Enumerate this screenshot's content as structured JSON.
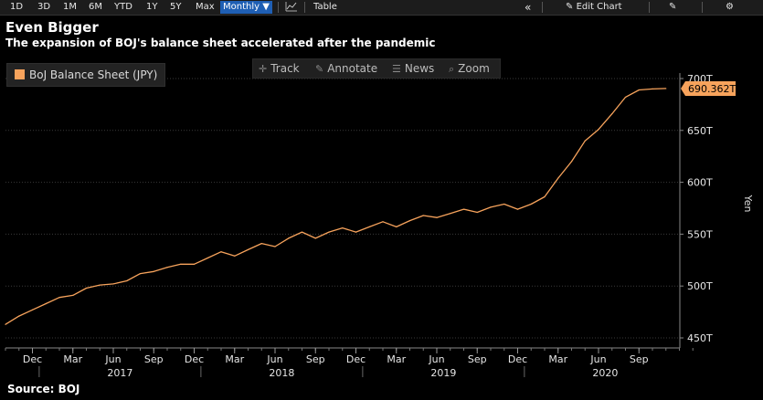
{
  "toolbar": {
    "ranges": [
      "1D",
      "3D",
      "1M",
      "6M",
      "YTD",
      "1Y",
      "5Y",
      "Max"
    ],
    "frequency": "Monthly ▼",
    "chart_type_icon": "line-chart-icon",
    "table_label": "Table",
    "collapse_icon": "double-chevron-left-icon",
    "edit_chart_label": "Edit Chart",
    "edit_icon": "pencil-icon",
    "annotate_icon": "edit-square-icon",
    "settings_icon": "gear-icon"
  },
  "chart_tools": {
    "track": "Track",
    "annotate": "Annotate",
    "news": "News",
    "zoom": "Zoom"
  },
  "colors": {
    "series": "#f7a35c",
    "background": "#000000",
    "grid": "#3a3a3a"
  },
  "chart_data": {
    "type": "line",
    "title": "Even Bigger",
    "subtitle": "The expansion of BOJ's balance sheet accelerated after the pandemic",
    "source": "Source: BOJ",
    "ylabel": "Yen",
    "ylim": [
      450,
      700
    ],
    "yticks": [
      "700T",
      "650T",
      "600T",
      "550T",
      "500T",
      "450T"
    ],
    "ytick_values": [
      700,
      650,
      600,
      550,
      500,
      450
    ],
    "grid": true,
    "legend": "top-left",
    "x_month_ticks": [
      "Dec",
      "Mar",
      "Jun",
      "Sep",
      "Dec",
      "Mar",
      "Jun",
      "Sep",
      "Dec",
      "Mar",
      "Jun",
      "Sep",
      "Dec",
      "Mar",
      "Jun",
      "Sep"
    ],
    "x_year_labels": [
      "2017",
      "2018",
      "2019",
      "2020"
    ],
    "last_value_label": "690.362T",
    "series": [
      {
        "name": "BoJ Balance Sheet (JPY)",
        "x": [
          "2016-10",
          "2016-11",
          "2016-12",
          "2017-01",
          "2017-02",
          "2017-03",
          "2017-04",
          "2017-05",
          "2017-06",
          "2017-07",
          "2017-08",
          "2017-09",
          "2017-10",
          "2017-11",
          "2017-12",
          "2018-01",
          "2018-02",
          "2018-03",
          "2018-04",
          "2018-05",
          "2018-06",
          "2018-07",
          "2018-08",
          "2018-09",
          "2018-10",
          "2018-11",
          "2018-12",
          "2019-01",
          "2019-02",
          "2019-03",
          "2019-04",
          "2019-05",
          "2019-06",
          "2019-07",
          "2019-08",
          "2019-09",
          "2019-10",
          "2019-11",
          "2019-12",
          "2020-01",
          "2020-02",
          "2020-03",
          "2020-04",
          "2020-05",
          "2020-06",
          "2020-07",
          "2020-08",
          "2020-09",
          "2020-10",
          "2020-11"
        ],
        "values": [
          463,
          471,
          477,
          483,
          489,
          491,
          498,
          501,
          502,
          505,
          512,
          514,
          518,
          521,
          521,
          527,
          533,
          529,
          535,
          541,
          538,
          546,
          552,
          546,
          552,
          556,
          552,
          557,
          562,
          557,
          563,
          568,
          566,
          570,
          574,
          571,
          576,
          579,
          574,
          579,
          586,
          604,
          620,
          640,
          651,
          666,
          682,
          689,
          690,
          690.362
        ]
      }
    ]
  }
}
